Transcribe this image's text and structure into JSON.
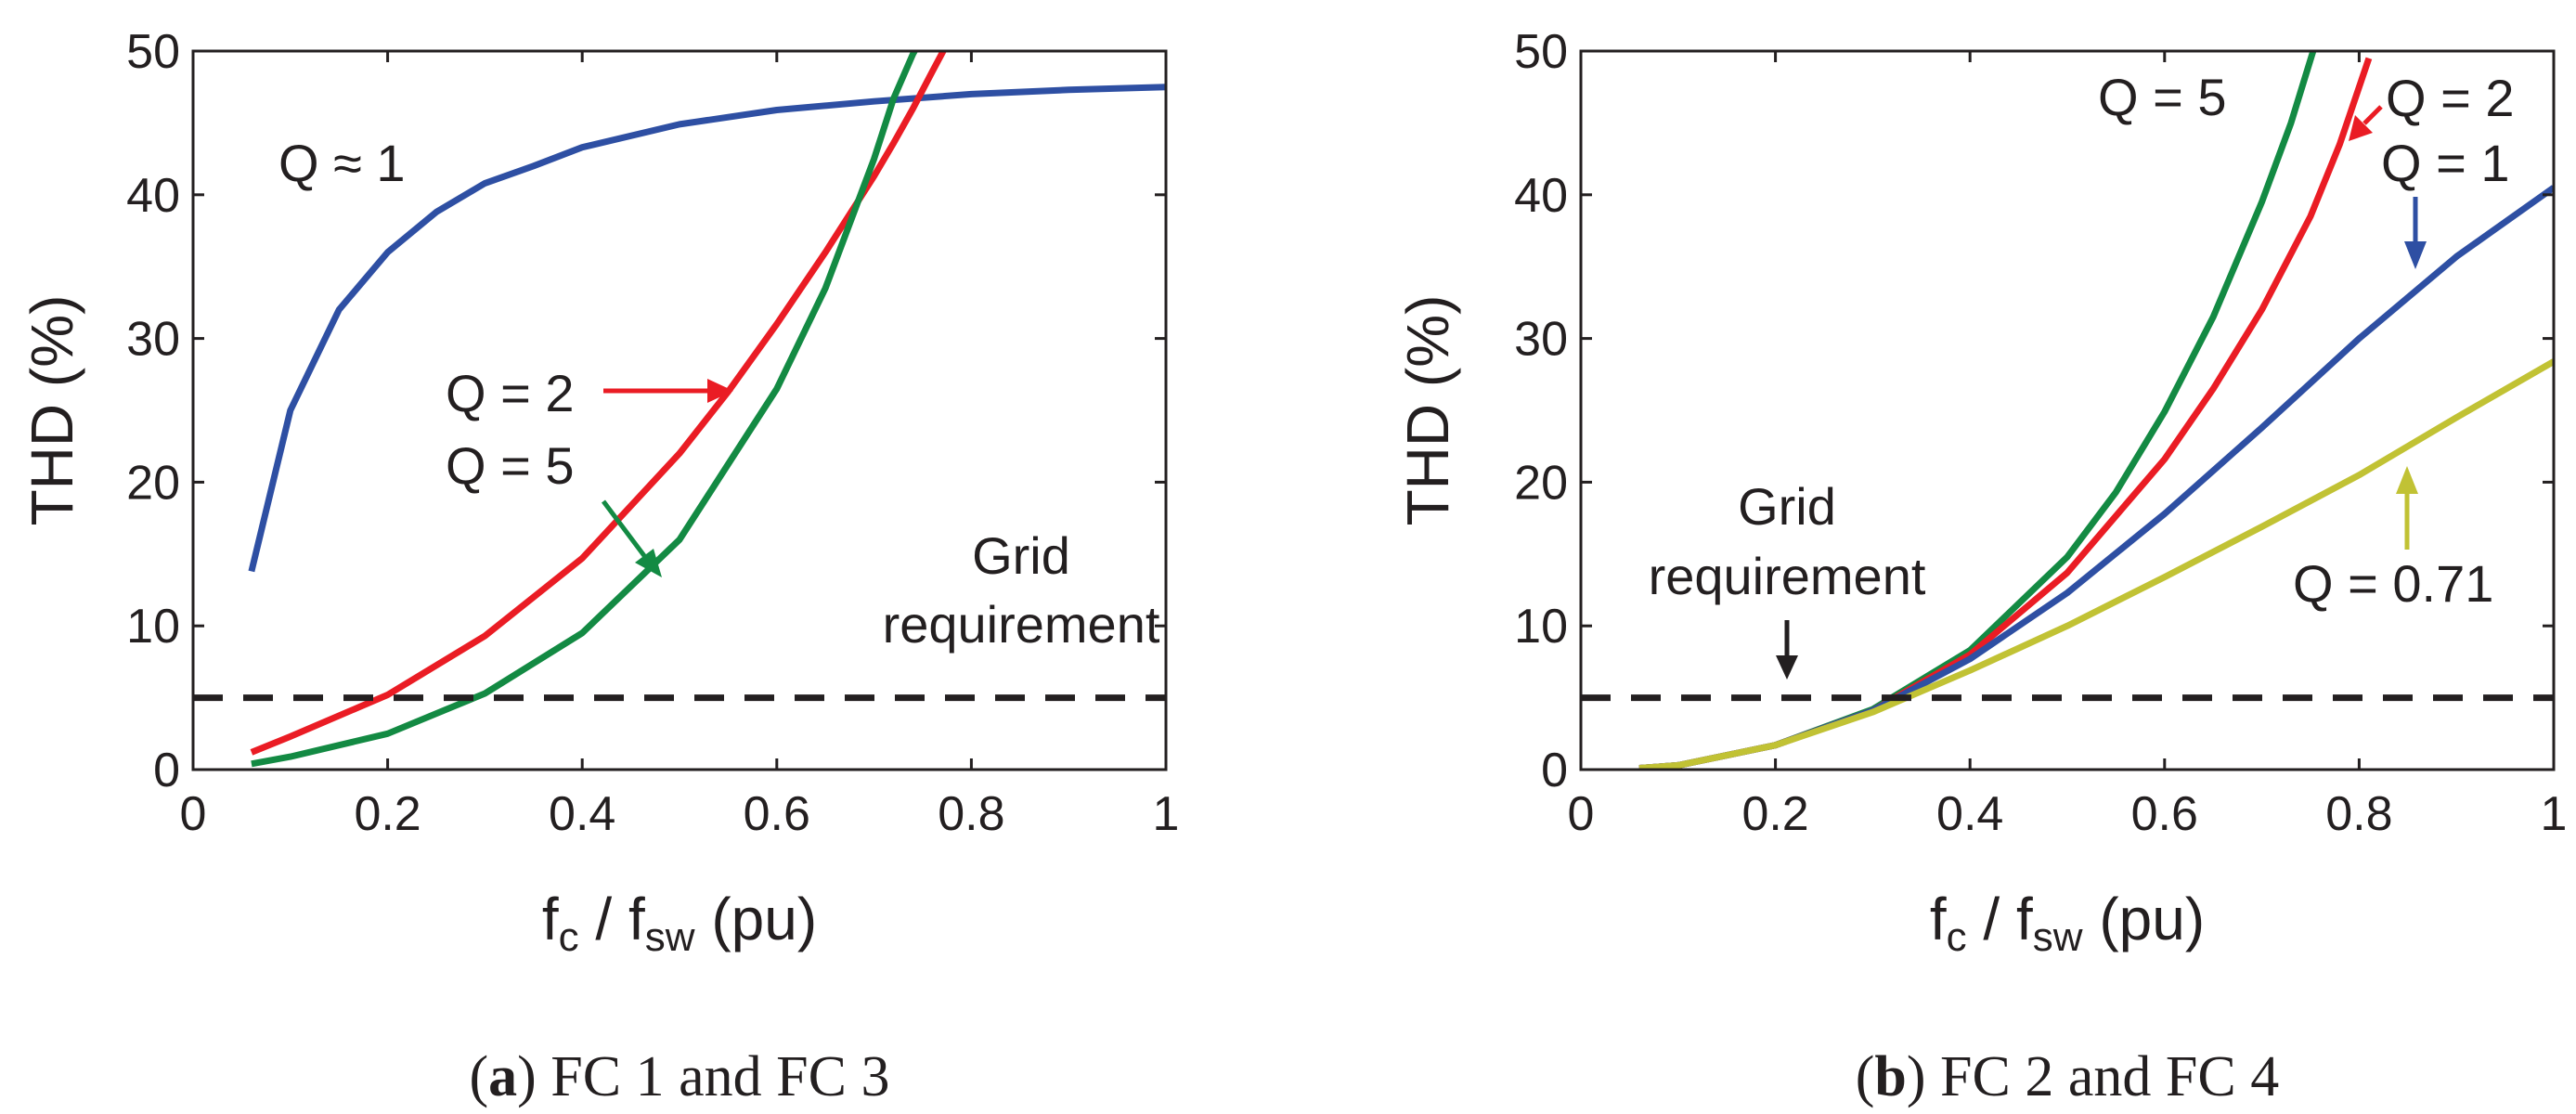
{
  "chart_data": [
    {
      "type": "line",
      "panel": "a",
      "caption_letter": "a",
      "caption_rest": " FC 1 and FC 3",
      "xlabel_main": "f",
      "xlabel_sub1": "c",
      "xlabel_mid": " / f",
      "xlabel_sub2": "sw",
      "xlabel_unit": " (pu)",
      "ylabel": "THD (%)",
      "xlim": [
        0,
        1
      ],
      "ylim": [
        0,
        50
      ],
      "xticks": [
        "0",
        "0.2",
        "0.4",
        "0.6",
        "0.8",
        "1"
      ],
      "yticks": [
        "0",
        "10",
        "20",
        "30",
        "40",
        "50"
      ],
      "reference_line": {
        "y": 5,
        "label_line1": "Grid",
        "label_line2": "requirement"
      },
      "series": [
        {
          "name": "Q ≈ 1",
          "color": "#2e4fa3",
          "x": [
            0.06,
            0.1,
            0.15,
            0.2,
            0.25,
            0.3,
            0.35,
            0.4,
            0.5,
            0.6,
            0.7,
            0.8,
            0.9,
            1.0
          ],
          "values": [
            13.8,
            25,
            32,
            36,
            38.8,
            40.8,
            42,
            43.3,
            44.9,
            45.9,
            46.5,
            47,
            47.3,
            47.5
          ]
        },
        {
          "name": "Q = 2",
          "color": "#ea1c24",
          "x": [
            0.06,
            0.1,
            0.2,
            0.3,
            0.4,
            0.5,
            0.55,
            0.6,
            0.65,
            0.7,
            0.72,
            0.74,
            0.76,
            0.775
          ],
          "values": [
            1.2,
            2.3,
            5.2,
            9.3,
            14.7,
            22,
            26.3,
            31,
            36,
            41.3,
            43.6,
            46,
            48.6,
            50.5
          ]
        },
        {
          "name": "Q = 5",
          "color": "#138a43",
          "x": [
            0.06,
            0.1,
            0.2,
            0.3,
            0.4,
            0.5,
            0.6,
            0.65,
            0.7,
            0.72,
            0.74,
            0.75
          ],
          "values": [
            0.4,
            0.9,
            2.5,
            5.3,
            9.5,
            16,
            26.5,
            33.5,
            42.5,
            46.7,
            49.8,
            51
          ]
        }
      ],
      "annotations": [
        {
          "text": "Q ≈ 1",
          "color": "#2e4fa3"
        },
        {
          "text": "Q = 2",
          "color": "#ea1c24"
        },
        {
          "text": "Q = 5",
          "color": "#138a43"
        }
      ]
    },
    {
      "type": "line",
      "panel": "b",
      "caption_letter": "b",
      "caption_rest": " FC 2 and FC 4",
      "xlabel_main": "f",
      "xlabel_sub1": "c",
      "xlabel_mid": " / f",
      "xlabel_sub2": "sw",
      "xlabel_unit": " (pu)",
      "ylabel": "THD (%)",
      "xlim": [
        0,
        1
      ],
      "ylim": [
        0,
        50
      ],
      "xticks": [
        "0",
        "0.2",
        "0.4",
        "0.6",
        "0.8",
        "1"
      ],
      "yticks": [
        "0",
        "10",
        "20",
        "30",
        "40",
        "50"
      ],
      "reference_line": {
        "y": 5,
        "label_line1": "Grid",
        "label_line2": "requirement"
      },
      "series": [
        {
          "name": "Q = 5",
          "color": "#138a43",
          "x": [
            0.06,
            0.1,
            0.2,
            0.3,
            0.4,
            0.5,
            0.55,
            0.6,
            0.65,
            0.7,
            0.73,
            0.755
          ],
          "values": [
            0.1,
            0.3,
            1.7,
            4.2,
            8.3,
            14.8,
            19.3,
            24.9,
            31.5,
            39.5,
            45,
            50.5
          ]
        },
        {
          "name": "Q = 2",
          "color": "#ea1c24",
          "x": [
            0.06,
            0.1,
            0.2,
            0.3,
            0.4,
            0.5,
            0.6,
            0.65,
            0.7,
            0.75,
            0.78,
            0.81
          ],
          "values": [
            0.1,
            0.3,
            1.7,
            4.1,
            8,
            13.7,
            21.6,
            26.5,
            32,
            38.5,
            43.5,
            49.5
          ]
        },
        {
          "name": "Q = 1",
          "color": "#2e4fa3",
          "x": [
            0.06,
            0.1,
            0.2,
            0.3,
            0.4,
            0.5,
            0.6,
            0.7,
            0.8,
            0.9,
            1.0
          ],
          "values": [
            0.1,
            0.3,
            1.7,
            4.1,
            7.7,
            12.3,
            17.8,
            23.8,
            30,
            35.7,
            40.5
          ]
        },
        {
          "name": "Q = 0.71",
          "color": "#c1c234",
          "x": [
            0.06,
            0.1,
            0.2,
            0.3,
            0.4,
            0.5,
            0.6,
            0.7,
            0.8,
            0.9,
            1.0
          ],
          "values": [
            0.1,
            0.3,
            1.7,
            4,
            6.9,
            10,
            13.4,
            16.9,
            20.5,
            24.5,
            28.4
          ]
        }
      ],
      "annotations": [
        {
          "text": "Q = 5",
          "color": "#138a43"
        },
        {
          "text": "Q = 2",
          "color": "#ea1c24"
        },
        {
          "text": "Q = 1",
          "color": "#2e4fa3"
        },
        {
          "text": "Q = 0.71",
          "color": "#c1c234"
        }
      ]
    }
  ]
}
